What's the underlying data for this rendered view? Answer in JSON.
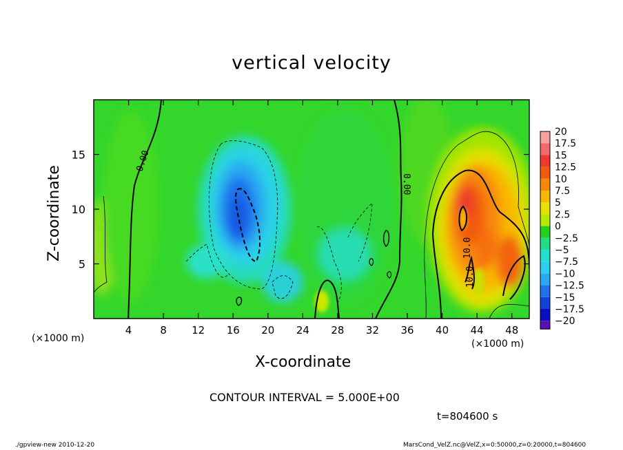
{
  "chart_data": {
    "type": "heatmap",
    "title": "vertical velocity",
    "xlabel": "X-coordinate",
    "ylabel": "Z-coordinate",
    "x_unit_label": "(×1000 m)",
    "xlim": [
      0,
      50
    ],
    "ylim": [
      0,
      20
    ],
    "x_ticks": [
      4,
      8,
      12,
      16,
      20,
      24,
      28,
      32,
      36,
      40,
      44,
      48
    ],
    "y_ticks": [
      5,
      10,
      15
    ],
    "colorbar": {
      "levels": [
        "20",
        "17.5",
        "15",
        "12.5",
        "10",
        "7.5",
        "5",
        "2.5",
        "0",
        "−2.5",
        "−5",
        "−7.5",
        "−10",
        "−12.5",
        "−15",
        "−17.5",
        "−20"
      ],
      "colors": [
        "#f8a0a0",
        "#f46a6a",
        "#ec3a2e",
        "#f25a0c",
        "#f7880a",
        "#f8b800",
        "#e8e000",
        "#b8e800",
        "#22d022",
        "#22dd88",
        "#22e0cc",
        "#2ad0ee",
        "#2aa8f0",
        "#1e72ec",
        "#1044d8",
        "#0a10c0",
        "#5a10b0"
      ]
    },
    "contour_labels": [
      "0.00",
      "0.00",
      "10.0",
      "10.0"
    ],
    "contour_interval": "CONTOUR INTERVAL = 5.000E+00",
    "time": "t=804600 s",
    "grid": false
  },
  "footer": {
    "left": "./gpview-new  2010-12-20",
    "right": "MarsCond_VelZ.nc@VelZ,x=0:50000,z=0:20000,t=804600"
  }
}
